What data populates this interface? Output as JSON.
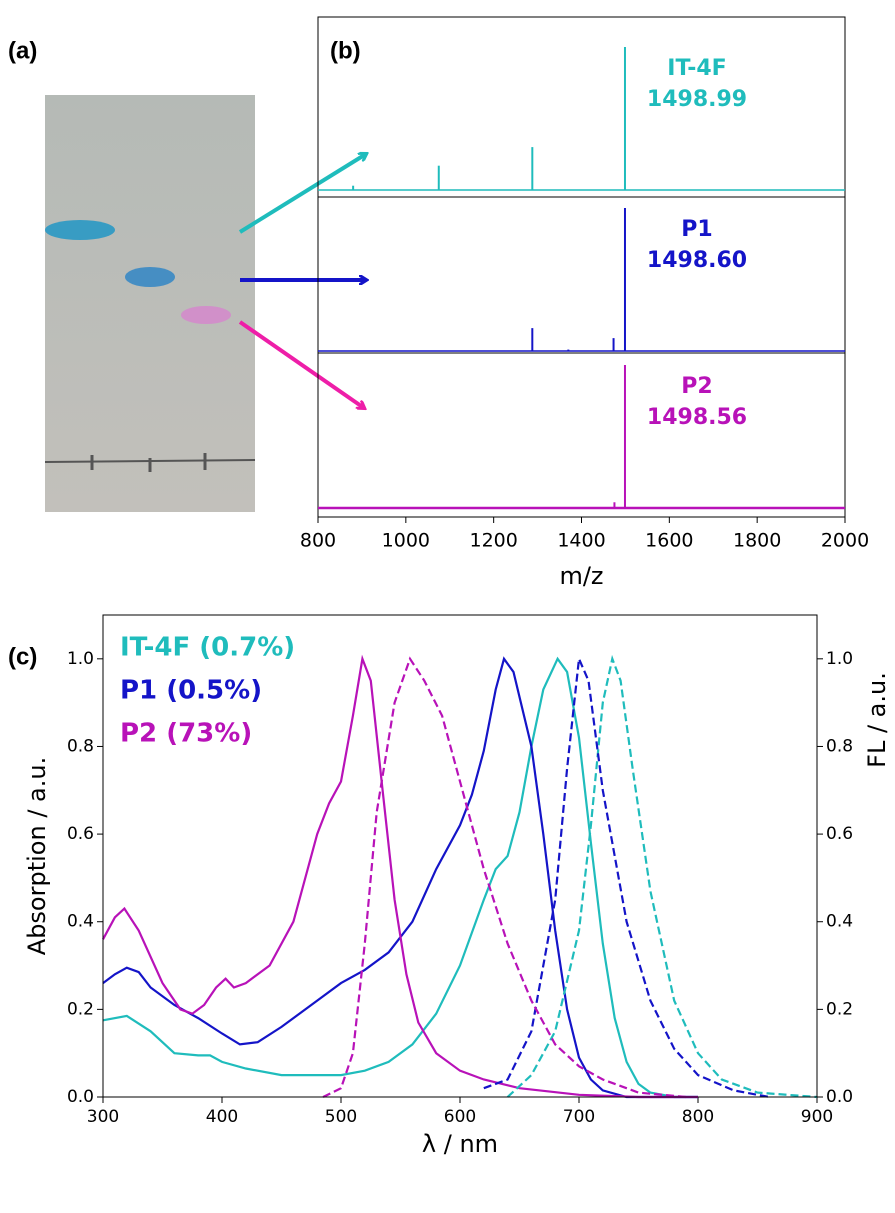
{
  "photo": {
    "label": "(a)"
  },
  "chart_data": [
    {
      "type": "stem",
      "panel_label": "(b)",
      "xlabel": "m/z",
      "xlim": [
        800,
        2000
      ],
      "xticks": [
        800,
        1000,
        1200,
        1400,
        1600,
        1800,
        2000
      ],
      "series": [
        {
          "name": "IT-4F",
          "label": "1498.99",
          "color": "#1fbcbc",
          "x": [
            880,
            1075,
            1288,
            1499
          ],
          "values": [
            0.03,
            0.17,
            0.3,
            1.0
          ]
        },
        {
          "name": "P1",
          "label": "1498.60",
          "color": "#1414c8",
          "x": [
            1288,
            1370,
            1473,
            1499
          ],
          "values": [
            0.16,
            0.01,
            0.09,
            1.0
          ]
        },
        {
          "name": "P2",
          "label": "1498.56",
          "color": "#b812b8",
          "x": [
            1475,
            1499
          ],
          "values": [
            0.04,
            1.0
          ]
        }
      ]
    },
    {
      "type": "line",
      "panel_label": "(c)",
      "xlabel": "λ / nm",
      "ylabel": "Absorption / a.u.",
      "y2label": "FL / a.u.",
      "xlim": [
        300,
        900
      ],
      "xticks": [
        300,
        400,
        500,
        600,
        700,
        800,
        900
      ],
      "ylim": [
        0,
        1.1
      ],
      "yticks": [
        {
          "value": 0,
          "label": "0.0"
        },
        0.2,
        0.4,
        0.6,
        0.8,
        {
          "value": 1,
          "label": "1.0"
        }
      ],
      "y2lim": [
        0,
        1.1
      ],
      "y2ticks": [
        {
          "value": 0,
          "label": "0.0"
        },
        0.2,
        0.4,
        0.6,
        0.8,
        {
          "value": 1,
          "label": "1.0"
        }
      ],
      "series": [
        {
          "name": "IT-4F (0.7%)",
          "color": "#1fbcbc",
          "linestyle": "solid",
          "x": [
            300,
            320,
            340,
            360,
            380,
            390,
            400,
            420,
            450,
            480,
            500,
            520,
            540,
            560,
            580,
            600,
            620,
            630,
            640,
            650,
            660,
            670,
            682,
            690,
            700,
            710,
            720,
            730,
            740,
            750,
            760,
            780,
            800
          ],
          "values": [
            0.175,
            0.185,
            0.15,
            0.1,
            0.095,
            0.095,
            0.08,
            0.065,
            0.05,
            0.05,
            0.05,
            0.06,
            0.08,
            0.12,
            0.19,
            0.3,
            0.45,
            0.52,
            0.55,
            0.65,
            0.8,
            0.93,
            1.0,
            0.97,
            0.82,
            0.58,
            0.35,
            0.18,
            0.08,
            0.03,
            0.01,
            0.0,
            0.0
          ]
        },
        {
          "name": "P1 (0.5%)",
          "color": "#1414c8",
          "linestyle": "solid",
          "x": [
            300,
            310,
            320,
            330,
            340,
            360,
            380,
            400,
            415,
            430,
            450,
            480,
            500,
            520,
            540,
            560,
            580,
            600,
            610,
            620,
            630,
            637,
            645,
            660,
            670,
            680,
            690,
            700,
            710,
            720,
            740,
            800
          ],
          "values": [
            0.26,
            0.28,
            0.295,
            0.285,
            0.25,
            0.21,
            0.18,
            0.145,
            0.12,
            0.125,
            0.16,
            0.22,
            0.26,
            0.29,
            0.33,
            0.4,
            0.52,
            0.62,
            0.69,
            0.79,
            0.93,
            1.0,
            0.97,
            0.8,
            0.6,
            0.38,
            0.2,
            0.09,
            0.04,
            0.015,
            0.0,
            0.0
          ]
        },
        {
          "name": "P2 (73%)",
          "color": "#b812b8",
          "linestyle": "solid",
          "x": [
            300,
            310,
            318,
            330,
            350,
            365,
            375,
            385,
            395,
            403,
            410,
            420,
            440,
            460,
            480,
            490,
            500,
            510,
            518,
            525,
            535,
            545,
            555,
            565,
            580,
            600,
            620,
            650,
            700,
            750,
            800
          ],
          "values": [
            0.36,
            0.41,
            0.43,
            0.38,
            0.26,
            0.2,
            0.19,
            0.21,
            0.25,
            0.27,
            0.25,
            0.26,
            0.3,
            0.4,
            0.6,
            0.67,
            0.72,
            0.87,
            1.0,
            0.95,
            0.7,
            0.45,
            0.28,
            0.17,
            0.1,
            0.06,
            0.04,
            0.02,
            0.005,
            0.0,
            0.0
          ]
        },
        {
          "color": "#1fbcbc",
          "linestyle": "dashed",
          "axis": "y2",
          "x": [
            640,
            660,
            680,
            700,
            710,
            720,
            728,
            735,
            745,
            760,
            780,
            800,
            820,
            850,
            900
          ],
          "values": [
            0.0,
            0.05,
            0.15,
            0.38,
            0.62,
            0.9,
            1.0,
            0.95,
            0.75,
            0.47,
            0.22,
            0.1,
            0.04,
            0.01,
            0.0
          ]
        },
        {
          "color": "#1414c8",
          "linestyle": "dashed",
          "axis": "y2",
          "x": [
            620,
            640,
            660,
            680,
            690,
            700,
            708,
            720,
            740,
            760,
            780,
            800,
            830,
            860
          ],
          "values": [
            0.02,
            0.04,
            0.15,
            0.45,
            0.75,
            1.0,
            0.95,
            0.7,
            0.4,
            0.22,
            0.11,
            0.05,
            0.015,
            0.0
          ]
        },
        {
          "color": "#b812b8",
          "linestyle": "dashed",
          "axis": "y2",
          "x": [
            485,
            500,
            510,
            520,
            530,
            545,
            558,
            570,
            585,
            600,
            620,
            640,
            660,
            680,
            700,
            720,
            750,
            790
          ],
          "values": [
            0.0,
            0.02,
            0.1,
            0.35,
            0.65,
            0.9,
            1.0,
            0.95,
            0.87,
            0.72,
            0.52,
            0.35,
            0.22,
            0.12,
            0.07,
            0.04,
            0.01,
            0.0
          ]
        }
      ]
    }
  ]
}
